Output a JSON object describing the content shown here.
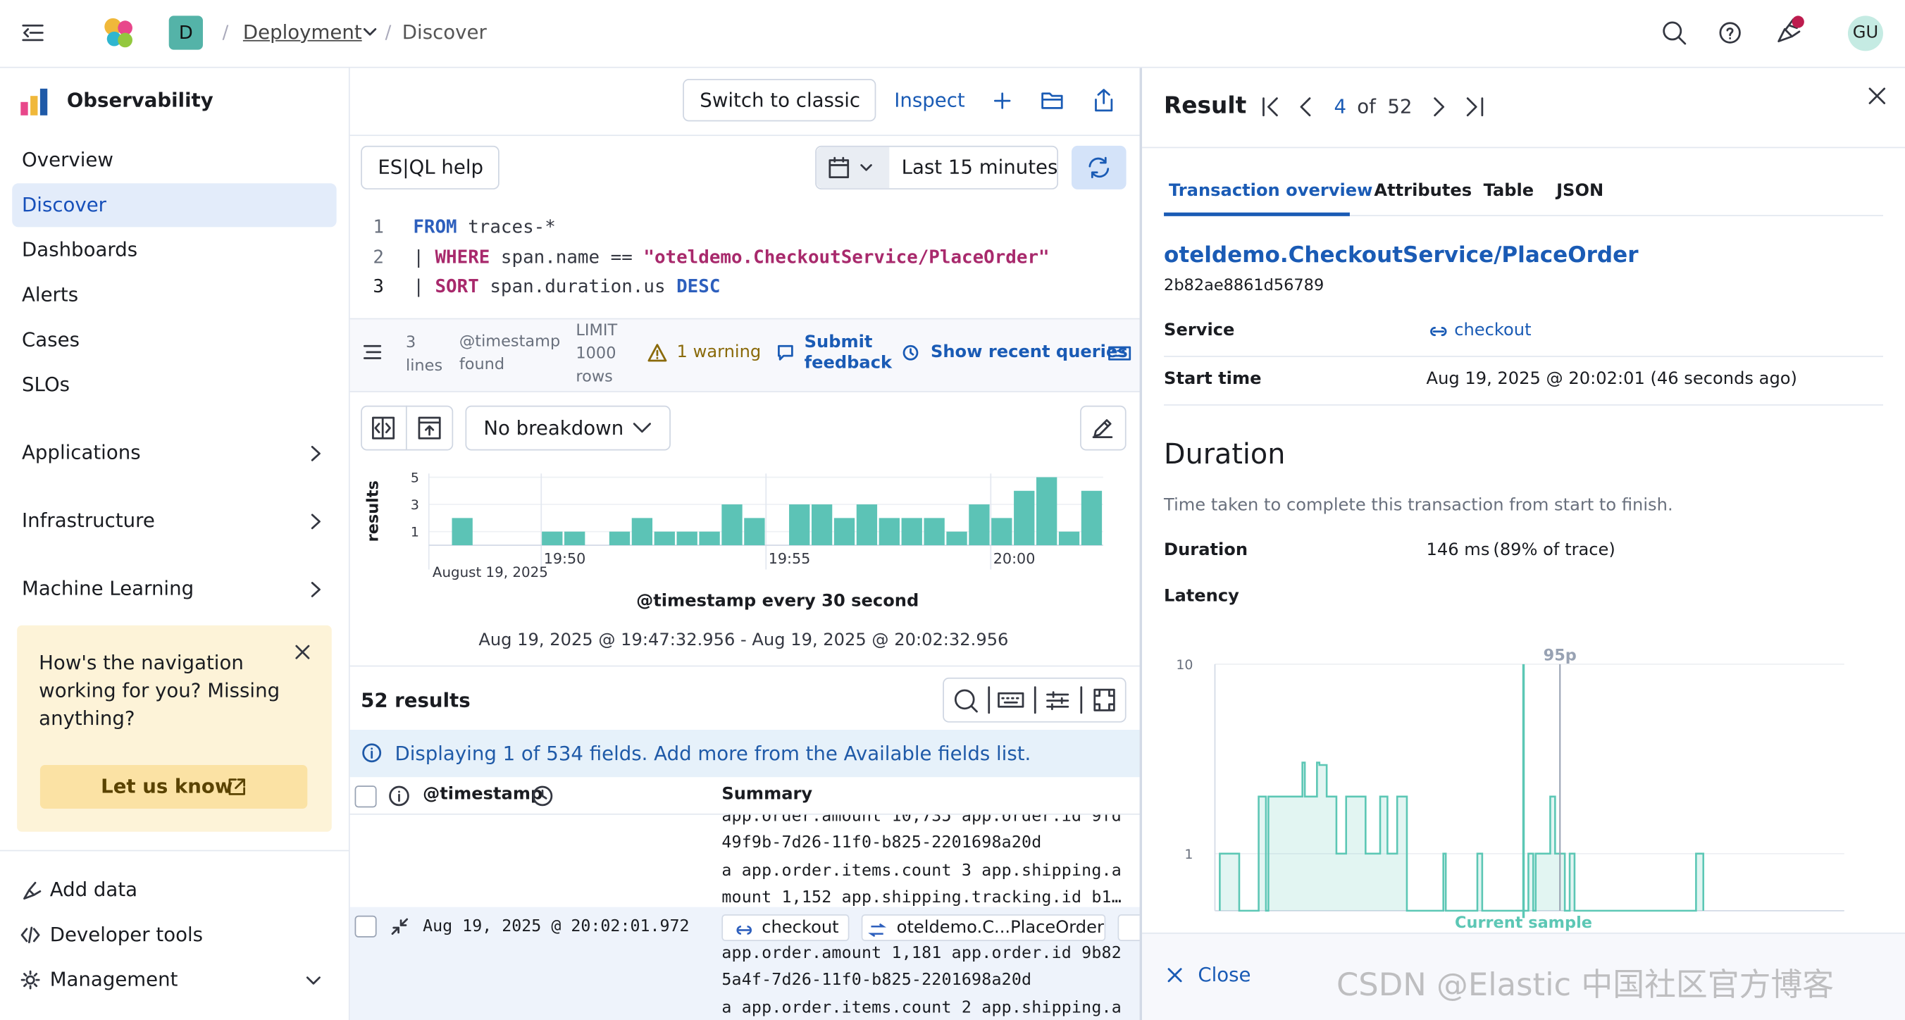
{
  "header": {
    "space_avatar": "D",
    "breadcrumbs": [
      "Deployment",
      "Discover"
    ],
    "user_avatar": "GU"
  },
  "sidebar": {
    "title": "Observability",
    "nav": [
      "Overview",
      "Discover",
      "Dashboards",
      "Alerts",
      "Cases",
      "SLOs"
    ],
    "groups": [
      "Applications",
      "Infrastructure",
      "Machine Learning"
    ],
    "callout": {
      "text": "How's the navigation working for you? Missing anything?",
      "button": "Let us know"
    },
    "footer": [
      "Add data",
      "Developer tools",
      "Management"
    ]
  },
  "toolbar": {
    "switch": "Switch to classic",
    "inspect": "Inspect"
  },
  "query": {
    "help": "ES|QL help",
    "time_range": "Last 15 minutes",
    "lines": [
      {
        "number": 1,
        "tokens": [
          {
            "text": "FROM",
            "color": "#2d5fbd"
          },
          {
            "text": " traces-*",
            "color": "#343741"
          }
        ]
      },
      {
        "number": 2,
        "tokens": [
          {
            "text": "| ",
            "color": "#343741"
          },
          {
            "text": "WHERE",
            "color": "#a8296c"
          },
          {
            "text": " span.name == ",
            "color": "#343741"
          },
          {
            "text": "\"oteldemo.CheckoutService/PlaceOrder\"",
            "color": "#a8296c"
          }
        ]
      },
      {
        "number": 3,
        "tokens": [
          {
            "text": "| ",
            "color": "#343741"
          },
          {
            "text": "SORT",
            "color": "#a8296c"
          },
          {
            "text": " span.duration.us ",
            "color": "#343741"
          },
          {
            "text": "DESC",
            "color": "#2d5fbd"
          }
        ]
      }
    ]
  },
  "status": {
    "lines": "3 lines",
    "timestamp": "@timestamp found",
    "limit": "LIMIT 1000 rows",
    "warning": "1 warning",
    "feedback": "Submit feedback",
    "recent": "Show recent queries"
  },
  "breakdown": "No breakdown",
  "histogram": {
    "type": "bar",
    "ylabel": "results",
    "values": [
      0,
      2,
      0,
      0,
      0,
      1,
      1,
      0,
      1,
      2,
      1,
      1,
      1,
      3,
      2,
      0,
      3,
      3,
      2,
      3,
      2,
      2,
      2,
      1,
      3,
      2,
      4,
      5,
      1,
      4
    ],
    "color": "#5cc3b6",
    "ylim": [
      0,
      5
    ],
    "yticks": [
      1,
      3,
      5
    ],
    "xtick_labels": [
      "19:50",
      "19:55",
      "20:00"
    ],
    "date_label": "August 19, 2025",
    "grid": true,
    "title": "@timestamp every 30 second",
    "range": "Aug 19, 2025 @ 19:47:32.956 - Aug 19, 2025 @ 20:02:32.956"
  },
  "results": {
    "count": "52 results",
    "callout": "Displaying 1 of 534 fields. Add more from the Available fields list.",
    "columns": [
      "@timestamp",
      "Summary"
    ],
    "rows": [
      {
        "lines": [
          "app.order.amount 10,735 app.order.id 9fd",
          "49f9b-7d26-11f0-b825-2201698a20d",
          "a app.order.items.count 3 app.shipping.a",
          "mount 1,152 app.shipping.tracking.id b1…"
        ]
      },
      {
        "timestamp": "Aug 19, 2025 @ 20:02:01.972",
        "badges": [
          "checkout",
          "oteldemo.C...PlaceOrder"
        ],
        "lines": [
          "app.order.amount 1,181 app.order.id 9b82",
          "5a4f-7d26-11f0-b825-2201698a20d",
          "a app.order.items.count 2 app.shipping.a"
        ]
      }
    ]
  },
  "flyout": {
    "title": "Result",
    "index": 4,
    "of": "of",
    "total": 52,
    "tabs": [
      "Transaction overview",
      "Attributes",
      "Table",
      "JSON"
    ],
    "transaction": "oteldemo.CheckoutService/PlaceOrder",
    "id": "2b82ae8861d56789",
    "fields": [
      {
        "label": "Service",
        "value": "checkout"
      },
      {
        "label": "Start time",
        "value": "Aug 19, 2025 @ 20:02:01 (46 seconds ago)"
      }
    ],
    "section": "Duration",
    "description": "Time taken to complete this transaction from start to finish.",
    "duration": {
      "label": "Duration",
      "value": "146 ms",
      "share": "(89% of trace)"
    },
    "latency": {
      "title": "Latency",
      "type": "area",
      "yscale": "log",
      "ylim": [
        0.5,
        10
      ],
      "yticks": [
        10,
        1
      ],
      "marker_label": "95p",
      "current_label": "Current sample",
      "color": "#5cc7b5",
      "grid": true
    },
    "close": "Close"
  },
  "watermark": "CSDN @Elastic 中国社区官方博客"
}
